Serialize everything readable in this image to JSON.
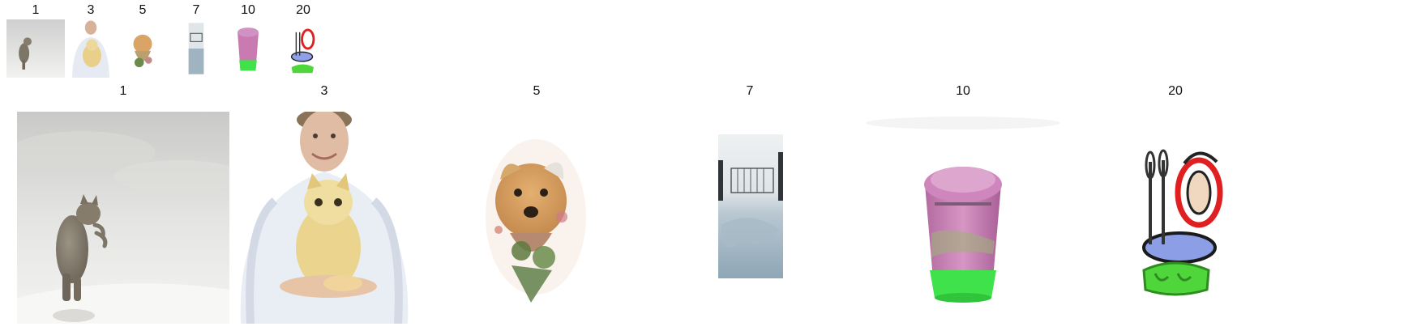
{
  "thumbnails": [
    {
      "label": "1"
    },
    {
      "label": "3"
    },
    {
      "label": "5"
    },
    {
      "label": "7"
    },
    {
      "label": "10"
    },
    {
      "label": "20"
    }
  ],
  "panels": [
    {
      "label": "1"
    },
    {
      "label": "3"
    },
    {
      "label": "5"
    },
    {
      "label": "7"
    },
    {
      "label": "10"
    },
    {
      "label": "20"
    }
  ]
}
